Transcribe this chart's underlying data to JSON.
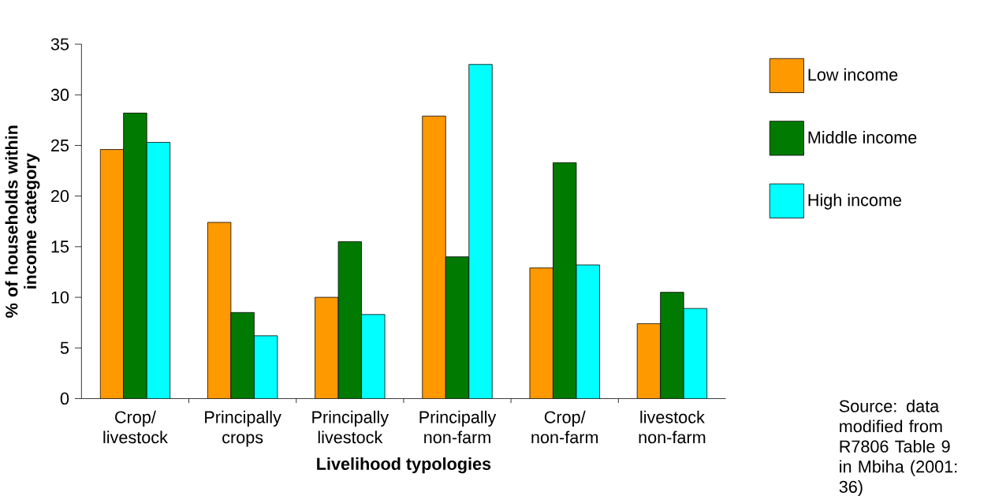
{
  "chart_data": {
    "type": "bar",
    "xlabel": "Livelihood typologies",
    "ylabel": "% of households within income category",
    "categories": [
      "Crop/ livestock",
      "Principally crops",
      "Principally livestock",
      "Principally non-farm",
      "Crop/ non-farm",
      "livestock non-farm"
    ],
    "series": [
      {
        "name": "Low income",
        "color": "#ff9900",
        "values": [
          24.6,
          17.4,
          10.0,
          27.9,
          12.9,
          7.4
        ]
      },
      {
        "name": "Middle income",
        "color": "#007a00",
        "values": [
          28.2,
          8.5,
          15.5,
          14.0,
          23.3,
          10.5
        ]
      },
      {
        "name": "High income",
        "color": "#00ffff",
        "values": [
          25.3,
          6.2,
          8.3,
          33.0,
          13.2,
          8.9
        ]
      }
    ],
    "ylim": [
      0,
      35
    ],
    "yticks": [
      0,
      5,
      10,
      15,
      20,
      25,
      30,
      35
    ],
    "legend": "right",
    "annotations": [
      "Source: data modified from R7806 Table 9 in Mbiha (2001: 36)"
    ]
  }
}
